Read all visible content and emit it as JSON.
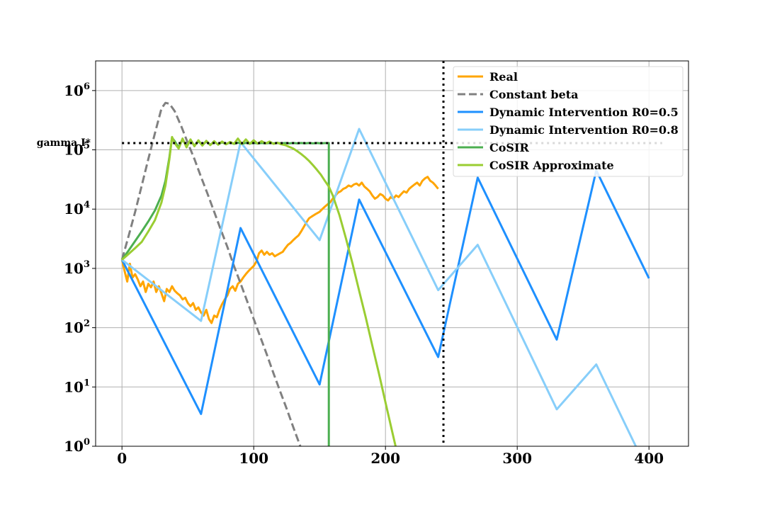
{
  "chart_data": {
    "type": "line",
    "title": "",
    "xlabel": "",
    "ylabel": "",
    "xlim": [
      -20,
      430
    ],
    "ylim_log10": [
      0,
      6.5
    ],
    "y_scale": "log",
    "grid": true,
    "legend_position": "upper-right",
    "x_ticks": [
      0,
      100,
      200,
      300,
      400
    ],
    "x_tick_labels": [
      "0",
      "100",
      "200",
      "300",
      "400"
    ],
    "y_ticks_log10": [
      0,
      1,
      2,
      3,
      4,
      5,
      6
    ],
    "y_tick_labels": [
      {
        "base": "10",
        "exp": "0"
      },
      {
        "base": "10",
        "exp": "1"
      },
      {
        "base": "10",
        "exp": "2"
      },
      {
        "base": "10",
        "exp": "3"
      },
      {
        "base": "10",
        "exp": "4"
      },
      {
        "base": "10",
        "exp": "5"
      },
      {
        "base": "10",
        "exp": "6"
      }
    ],
    "hline": {
      "label": "gamma I*",
      "y": 130000,
      "x_range": [
        0,
        410
      ],
      "color": "#000000"
    },
    "vline": {
      "x": 244,
      "color": "#000000"
    },
    "series": [
      {
        "name": "Real",
        "color": "#ffa500",
        "style": "solid",
        "points": [
          [
            0,
            1400
          ],
          [
            2,
            900
          ],
          [
            4,
            600
          ],
          [
            6,
            1200
          ],
          [
            8,
            700
          ],
          [
            10,
            800
          ],
          [
            12,
            650
          ],
          [
            14,
            500
          ],
          [
            16,
            600
          ],
          [
            18,
            400
          ],
          [
            20,
            550
          ],
          [
            22,
            480
          ],
          [
            24,
            600
          ],
          [
            26,
            400
          ],
          [
            28,
            500
          ],
          [
            30,
            380
          ],
          [
            32,
            280
          ],
          [
            34,
            450
          ],
          [
            36,
            400
          ],
          [
            38,
            500
          ],
          [
            40,
            420
          ],
          [
            42,
            380
          ],
          [
            44,
            350
          ],
          [
            46,
            300
          ],
          [
            48,
            320
          ],
          [
            50,
            260
          ],
          [
            52,
            230
          ],
          [
            54,
            260
          ],
          [
            56,
            200
          ],
          [
            58,
            220
          ],
          [
            60,
            180
          ],
          [
            62,
            160
          ],
          [
            64,
            200
          ],
          [
            66,
            140
          ],
          [
            68,
            120
          ],
          [
            70,
            160
          ],
          [
            72,
            150
          ],
          [
            74,
            200
          ],
          [
            76,
            250
          ],
          [
            78,
            300
          ],
          [
            80,
            350
          ],
          [
            82,
            450
          ],
          [
            84,
            500
          ],
          [
            86,
            420
          ],
          [
            88,
            550
          ],
          [
            90,
            600
          ],
          [
            92,
            700
          ],
          [
            94,
            800
          ],
          [
            96,
            900
          ],
          [
            98,
            1000
          ],
          [
            100,
            1100
          ],
          [
            102,
            1300
          ],
          [
            104,
            1800
          ],
          [
            106,
            2000
          ],
          [
            108,
            1700
          ],
          [
            110,
            1900
          ],
          [
            112,
            1700
          ],
          [
            114,
            1800
          ],
          [
            116,
            1600
          ],
          [
            118,
            1700
          ],
          [
            120,
            1800
          ],
          [
            122,
            1900
          ],
          [
            124,
            2200
          ],
          [
            126,
            2500
          ],
          [
            128,
            2700
          ],
          [
            130,
            3000
          ],
          [
            132,
            3300
          ],
          [
            134,
            3600
          ],
          [
            136,
            4200
          ],
          [
            138,
            5000
          ],
          [
            140,
            6000
          ],
          [
            142,
            7000
          ],
          [
            144,
            7500
          ],
          [
            146,
            8000
          ],
          [
            148,
            8500
          ],
          [
            150,
            9000
          ],
          [
            152,
            10000
          ],
          [
            154,
            11000
          ],
          [
            156,
            12000
          ],
          [
            158,
            13000
          ],
          [
            160,
            15000
          ],
          [
            162,
            17000
          ],
          [
            164,
            19000
          ],
          [
            166,
            20000
          ],
          [
            168,
            22000
          ],
          [
            170,
            23000
          ],
          [
            172,
            25000
          ],
          [
            174,
            24000
          ],
          [
            176,
            26000
          ],
          [
            178,
            27000
          ],
          [
            180,
            25000
          ],
          [
            182,
            28000
          ],
          [
            184,
            24000
          ],
          [
            186,
            22000
          ],
          [
            188,
            20000
          ],
          [
            190,
            17000
          ],
          [
            192,
            15000
          ],
          [
            194,
            16000
          ],
          [
            196,
            18000
          ],
          [
            198,
            17000
          ],
          [
            200,
            15000
          ],
          [
            202,
            14000
          ],
          [
            204,
            16000
          ],
          [
            206,
            15000
          ],
          [
            208,
            17000
          ],
          [
            210,
            16000
          ],
          [
            212,
            18000
          ],
          [
            214,
            20000
          ],
          [
            216,
            19000
          ],
          [
            218,
            22000
          ],
          [
            220,
            24000
          ],
          [
            222,
            26000
          ],
          [
            224,
            28000
          ],
          [
            226,
            25000
          ],
          [
            228,
            30000
          ],
          [
            230,
            33000
          ],
          [
            232,
            35000
          ],
          [
            234,
            30000
          ],
          [
            236,
            28000
          ],
          [
            238,
            25000
          ],
          [
            240,
            22000
          ]
        ]
      },
      {
        "name": "Constant beta",
        "color": "#808080",
        "style": "dashed",
        "points": [
          [
            0,
            1400
          ],
          [
            5,
            3500
          ],
          [
            10,
            9000
          ],
          [
            15,
            25000
          ],
          [
            20,
            70000
          ],
          [
            25,
            190000
          ],
          [
            30,
            500000
          ],
          [
            33,
            620000
          ],
          [
            36,
            600000
          ],
          [
            40,
            450000
          ],
          [
            45,
            250000
          ],
          [
            50,
            130000
          ],
          [
            55,
            70000
          ],
          [
            60,
            35000
          ],
          [
            65,
            18000
          ],
          [
            70,
            9000
          ],
          [
            75,
            4500
          ],
          [
            80,
            2300
          ],
          [
            85,
            1100
          ],
          [
            90,
            560
          ],
          [
            95,
            280
          ],
          [
            100,
            140
          ],
          [
            105,
            70
          ],
          [
            110,
            35
          ],
          [
            115,
            17
          ],
          [
            120,
            8.5
          ],
          [
            125,
            4.3
          ],
          [
            130,
            2.1
          ],
          [
            135,
            1.05
          ],
          [
            140,
            0.52
          ],
          [
            145,
            0.26
          ]
        ]
      },
      {
        "name": "Dynamic Intervention R0=0.5",
        "color": "#1e90ff",
        "style": "solid",
        "points": [
          [
            0,
            1400
          ],
          [
            60,
            3.5
          ],
          [
            90,
            4800
          ],
          [
            150,
            11
          ],
          [
            180,
            14500
          ],
          [
            240,
            32
          ],
          [
            270,
            34000
          ],
          [
            330,
            63
          ],
          [
            360,
            45000
          ],
          [
            400,
            680
          ]
        ]
      },
      {
        "name": "Dynamic Intervention R0=0.8",
        "color": "#87cefa",
        "style": "solid",
        "points": [
          [
            0,
            1400
          ],
          [
            60,
            130
          ],
          [
            90,
            135000
          ],
          [
            150,
            3000
          ],
          [
            180,
            225000
          ],
          [
            240,
            430
          ],
          [
            270,
            2500
          ],
          [
            330,
            4.2
          ],
          [
            360,
            24
          ],
          [
            390,
            1.0
          ],
          [
            400,
            0.3
          ]
        ]
      },
      {
        "name": "CoSIR",
        "color": "#4caf50",
        "style": "solid",
        "points": [
          [
            0,
            1400
          ],
          [
            5,
            2000
          ],
          [
            10,
            2900
          ],
          [
            15,
            4200
          ],
          [
            20,
            6200
          ],
          [
            25,
            9500
          ],
          [
            30,
            17000
          ],
          [
            33,
            30000
          ],
          [
            36,
            75000
          ],
          [
            38,
            160000
          ],
          [
            40,
            140000
          ],
          [
            43,
            110000
          ],
          [
            46,
            150000
          ],
          [
            49,
            115000
          ],
          [
            52,
            145000
          ],
          [
            55,
            118000
          ],
          [
            58,
            140000
          ],
          [
            61,
            120000
          ],
          [
            64,
            138000
          ],
          [
            67,
            122000
          ],
          [
            70,
            136000
          ],
          [
            73,
            124000
          ],
          [
            76,
            134000
          ],
          [
            79,
            125000
          ],
          [
            82,
            133000
          ],
          [
            85,
            126000
          ],
          [
            88,
            132000
          ],
          [
            91,
            127000
          ],
          [
            94,
            131000
          ],
          [
            97,
            128000
          ],
          [
            100,
            131000
          ],
          [
            103,
            128000
          ],
          [
            106,
            130500
          ],
          [
            109,
            128500
          ],
          [
            112,
            130500
          ],
          [
            115,
            128500
          ],
          [
            118,
            130500
          ],
          [
            121,
            128500
          ],
          [
            124,
            130500
          ],
          [
            127,
            128500
          ],
          [
            130,
            130500
          ],
          [
            133,
            128500
          ],
          [
            136,
            130500
          ],
          [
            139,
            128500
          ],
          [
            142,
            130500
          ],
          [
            145,
            128500
          ],
          [
            148,
            130500
          ],
          [
            151,
            128500
          ],
          [
            154,
            130000
          ],
          [
            157,
            130000
          ],
          [
            157,
            0.3
          ]
        ]
      },
      {
        "name": "CoSIR Approximate",
        "color": "#9acd32",
        "style": "solid",
        "points": [
          [
            0,
            1400
          ],
          [
            5,
            1750
          ],
          [
            10,
            2200
          ],
          [
            15,
            2800
          ],
          [
            20,
            4200
          ],
          [
            25,
            6500
          ],
          [
            30,
            13000
          ],
          [
            33,
            25000
          ],
          [
            36,
            70000
          ],
          [
            38,
            165000
          ],
          [
            40,
            130000
          ],
          [
            43,
            105000
          ],
          [
            46,
            155000
          ],
          [
            49,
            110000
          ],
          [
            52,
            150000
          ],
          [
            55,
            115000
          ],
          [
            58,
            145000
          ],
          [
            61,
            118000
          ],
          [
            64,
            142000
          ],
          [
            67,
            120000
          ],
          [
            70,
            140000
          ],
          [
            73,
            122000
          ],
          [
            76,
            138000
          ],
          [
            79,
            124000
          ],
          [
            82,
            136000
          ],
          [
            85,
            126000
          ],
          [
            88,
            155000
          ],
          [
            91,
            125000
          ],
          [
            94,
            150000
          ],
          [
            97,
            126000
          ],
          [
            100,
            145000
          ],
          [
            103,
            127000
          ],
          [
            106,
            140000
          ],
          [
            109,
            128000
          ],
          [
            112,
            138000
          ],
          [
            115,
            126000
          ],
          [
            118,
            132000
          ],
          [
            121,
            124000
          ],
          [
            124,
            120000
          ],
          [
            127,
            112000
          ],
          [
            130,
            105000
          ],
          [
            133,
            95000
          ],
          [
            136,
            85000
          ],
          [
            139,
            75000
          ],
          [
            142,
            65000
          ],
          [
            145,
            55000
          ],
          [
            148,
            46000
          ],
          [
            151,
            38000
          ],
          [
            154,
            30000
          ],
          [
            157,
            24000
          ],
          [
            160,
            17000
          ],
          [
            165,
            8000
          ],
          [
            170,
            3200
          ],
          [
            175,
            1200
          ],
          [
            180,
            420
          ],
          [
            185,
            150
          ],
          [
            190,
            50
          ],
          [
            195,
            17
          ],
          [
            200,
            5.5
          ],
          [
            205,
            1.8
          ],
          [
            210,
            0.6
          ],
          [
            215,
            0.2
          ]
        ]
      }
    ]
  }
}
